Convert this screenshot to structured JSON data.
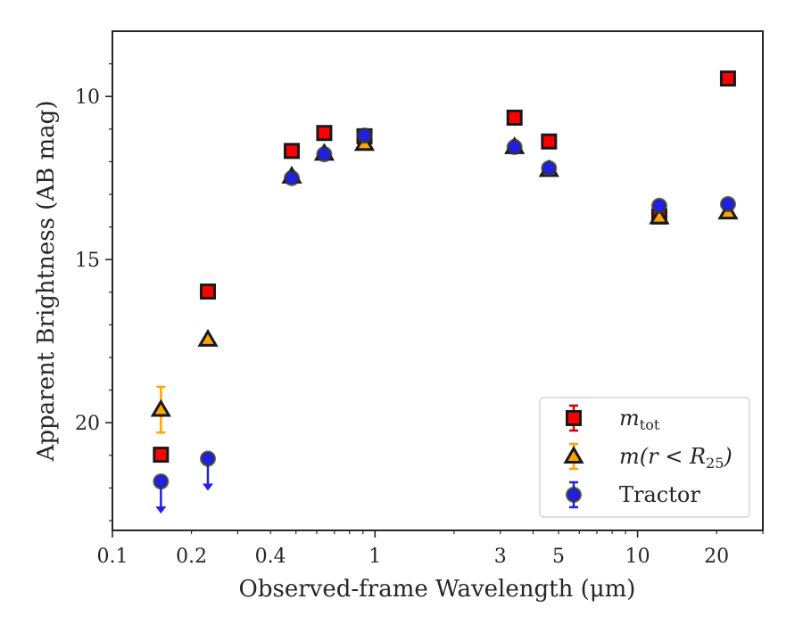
{
  "chart_data": {
    "type": "scatter",
    "xlabel": "Observed-frame Wavelength (μm)",
    "ylabel": "Apparent Brightness (AB mag)",
    "xscale": "log",
    "xlim": [
      0.1,
      30
    ],
    "ylim": [
      23.3,
      8
    ],
    "y_inverted": true,
    "grid": false,
    "legend_position": "lower-right",
    "x_ticks": [
      {
        "value": 0.1,
        "label": "0.1"
      },
      {
        "value": 0.2,
        "label": "0.2"
      },
      {
        "value": 0.4,
        "label": "0.4"
      },
      {
        "value": 1,
        "label": "1"
      },
      {
        "value": 3,
        "label": "3"
      },
      {
        "value": 5,
        "label": "5"
      },
      {
        "value": 10,
        "label": "10"
      },
      {
        "value": 20,
        "label": "20"
      }
    ],
    "y_ticks": [
      {
        "value": 10,
        "label": "10"
      },
      {
        "value": 15,
        "label": "15"
      },
      {
        "value": 20,
        "label": "20"
      }
    ],
    "series": [
      {
        "name_main": "m",
        "name_sub": "tot",
        "marker": "square",
        "color": "#ff0000",
        "errcolor": "#cc0000",
        "points": [
          {
            "x": 0.153,
            "y": 20.98
          },
          {
            "x": 0.231,
            "y": 15.98
          },
          {
            "x": 0.482,
            "y": 11.67
          },
          {
            "x": 0.641,
            "y": 11.12
          },
          {
            "x": 0.912,
            "y": 11.22
          },
          {
            "x": 3.4,
            "y": 10.65
          },
          {
            "x": 4.6,
            "y": 11.38
          },
          {
            "x": 12.1,
            "y": 13.68
          },
          {
            "x": 22.1,
            "y": 9.45
          }
        ]
      },
      {
        "name_main": "m(r < R",
        "name_sub": "25",
        "name_end": ")",
        "marker": "triangle",
        "color": "#ffa500",
        "errcolor": "#ffa500",
        "points": [
          {
            "x": 0.153,
            "y": 19.6,
            "err": 0.7
          },
          {
            "x": 0.231,
            "y": 17.45
          },
          {
            "x": 0.482,
            "y": 12.45
          },
          {
            "x": 0.641,
            "y": 11.75
          },
          {
            "x": 0.912,
            "y": 11.45
          },
          {
            "x": 3.4,
            "y": 11.55
          },
          {
            "x": 4.6,
            "y": 12.25
          },
          {
            "x": 12.1,
            "y": 13.7
          },
          {
            "x": 22.1,
            "y": 13.55
          }
        ]
      },
      {
        "name_main": "Tractor",
        "marker": "circle",
        "color": "#1f1fe6",
        "errcolor": "#2020e8",
        "points": [
          {
            "x": 0.153,
            "y": 21.8,
            "upper_limit": true
          },
          {
            "x": 0.231,
            "y": 21.1,
            "upper_limit": true
          },
          {
            "x": 0.482,
            "y": 12.5
          },
          {
            "x": 0.641,
            "y": 11.77
          },
          {
            "x": 0.912,
            "y": 11.2
          },
          {
            "x": 3.4,
            "y": 11.55
          },
          {
            "x": 4.6,
            "y": 12.2
          },
          {
            "x": 12.1,
            "y": 13.35
          },
          {
            "x": 22.1,
            "y": 13.3
          }
        ]
      }
    ]
  }
}
